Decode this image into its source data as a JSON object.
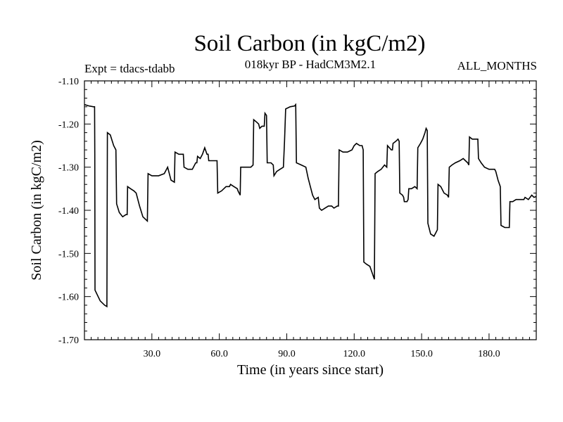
{
  "chart_data": {
    "type": "line",
    "title": "Soil Carbon (in kgC/m2)",
    "subtitle": "018kyr BP - HadCM3M2.1",
    "experiment": "Expt = tdacs-tdabb",
    "period": "ALL_MONTHS",
    "xlabel": "Time (in years since start)",
    "ylabel": "Soil Carbon (in kgC/m2)",
    "xlim": [
      0,
      201
    ],
    "ylim": [
      -1.7,
      -1.1
    ],
    "xticks": [
      30.0,
      60.0,
      90.0,
      120.0,
      150.0,
      180.0
    ],
    "xtick_labels": [
      "30.0",
      "60.0",
      "90.0",
      "120.0",
      "150.0",
      "180.0"
    ],
    "yticks": [
      -1.1,
      -1.2,
      -1.3,
      -1.4,
      -1.5,
      -1.6,
      -1.7
    ],
    "ytick_labels": [
      "-1.10",
      "-1.20",
      "-1.30",
      "-1.40",
      "-1.50",
      "-1.60",
      "-1.70"
    ],
    "series": [
      {
        "name": "Soil Carbon",
        "points": [
          [
            0,
            -1.155
          ],
          [
            2,
            -1.158
          ],
          [
            4,
            -1.16
          ],
          [
            4.5,
            -1.16
          ],
          [
            4.6,
            -1.27
          ],
          [
            4.7,
            -1.585
          ],
          [
            7,
            -1.61
          ],
          [
            9,
            -1.62
          ],
          [
            10,
            -1.623
          ],
          [
            10.2,
            -1.22
          ],
          [
            11.5,
            -1.225
          ],
          [
            13,
            -1.25
          ],
          [
            14,
            -1.26
          ],
          [
            14.3,
            -1.385
          ],
          [
            15.5,
            -1.405
          ],
          [
            17,
            -1.415
          ],
          [
            18.5,
            -1.41
          ],
          [
            19,
            -1.41
          ],
          [
            19.2,
            -1.345
          ],
          [
            20.5,
            -1.35
          ],
          [
            22,
            -1.355
          ],
          [
            23,
            -1.36
          ],
          [
            24.5,
            -1.39
          ],
          [
            26,
            -1.415
          ],
          [
            28,
            -1.425
          ],
          [
            28.3,
            -1.315
          ],
          [
            30,
            -1.32
          ],
          [
            33,
            -1.32
          ],
          [
            35.5,
            -1.315
          ],
          [
            36.5,
            -1.305
          ],
          [
            37,
            -1.3
          ],
          [
            37.5,
            -1.31
          ],
          [
            38.5,
            -1.33
          ],
          [
            40,
            -1.335
          ],
          [
            40.3,
            -1.265
          ],
          [
            42,
            -1.27
          ],
          [
            44,
            -1.27
          ],
          [
            44.3,
            -1.3
          ],
          [
            46,
            -1.305
          ],
          [
            48,
            -1.305
          ],
          [
            49.5,
            -1.29
          ],
          [
            50,
            -1.29
          ],
          [
            50.3,
            -1.275
          ],
          [
            51.5,
            -1.28
          ],
          [
            52.5,
            -1.27
          ],
          [
            53.5,
            -1.255
          ],
          [
            54.5,
            -1.27
          ],
          [
            55,
            -1.27
          ],
          [
            55.3,
            -1.285
          ],
          [
            57,
            -1.285
          ],
          [
            59,
            -1.285
          ],
          [
            59.3,
            -1.36
          ],
          [
            61,
            -1.355
          ],
          [
            63,
            -1.345
          ],
          [
            64.5,
            -1.345
          ],
          [
            65,
            -1.34
          ],
          [
            66.5,
            -1.345
          ],
          [
            68,
            -1.35
          ],
          [
            68.3,
            -1.355
          ],
          [
            69.3,
            -1.365
          ],
          [
            69.5,
            -1.3
          ],
          [
            71.5,
            -1.3
          ],
          [
            74,
            -1.3
          ],
          [
            75,
            -1.295
          ],
          [
            75.3,
            -1.19
          ],
          [
            76.5,
            -1.195
          ],
          [
            77.5,
            -1.2
          ],
          [
            78,
            -1.21
          ],
          [
            79,
            -1.205
          ],
          [
            80,
            -1.205
          ],
          [
            80.3,
            -1.175
          ],
          [
            81,
            -1.18
          ],
          [
            81.3,
            -1.29
          ],
          [
            83,
            -1.29
          ],
          [
            84,
            -1.295
          ],
          [
            84.3,
            -1.32
          ],
          [
            85.5,
            -1.31
          ],
          [
            87,
            -1.305
          ],
          [
            88.5,
            -1.3
          ],
          [
            89,
            -1.24
          ],
          [
            89.5,
            -1.165
          ],
          [
            91.5,
            -1.16
          ],
          [
            93.5,
            -1.158
          ],
          [
            94,
            -1.155
          ],
          [
            94.3,
            -1.29
          ],
          [
            96.5,
            -1.295
          ],
          [
            98.5,
            -1.3
          ],
          [
            99.5,
            -1.325
          ],
          [
            100.5,
            -1.345
          ],
          [
            101.5,
            -1.365
          ],
          [
            102.5,
            -1.375
          ],
          [
            104,
            -1.37
          ],
          [
            104.5,
            -1.395
          ],
          [
            105.5,
            -1.4
          ],
          [
            107,
            -1.395
          ],
          [
            108.5,
            -1.39
          ],
          [
            110,
            -1.39
          ],
          [
            111,
            -1.395
          ],
          [
            112.5,
            -1.39
          ],
          [
            113,
            -1.39
          ],
          [
            113.3,
            -1.26
          ],
          [
            115,
            -1.265
          ],
          [
            117,
            -1.265
          ],
          [
            119,
            -1.26
          ],
          [
            120,
            -1.25
          ],
          [
            121,
            -1.245
          ],
          [
            122.5,
            -1.25
          ],
          [
            123.5,
            -1.25
          ],
          [
            124,
            -1.26
          ],
          [
            124.3,
            -1.52
          ],
          [
            125.5,
            -1.525
          ],
          [
            127,
            -1.53
          ],
          [
            128,
            -1.545
          ],
          [
            129,
            -1.56
          ],
          [
            129.3,
            -1.315
          ],
          [
            130.5,
            -1.31
          ],
          [
            132,
            -1.305
          ],
          [
            133.5,
            -1.295
          ],
          [
            134.5,
            -1.3
          ],
          [
            134.8,
            -1.25
          ],
          [
            136.5,
            -1.26
          ],
          [
            137,
            -1.26
          ],
          [
            137.3,
            -1.245
          ],
          [
            138.5,
            -1.24
          ],
          [
            139.5,
            -1.235
          ],
          [
            140,
            -1.24
          ],
          [
            140.3,
            -1.36
          ],
          [
            141.5,
            -1.365
          ],
          [
            142,
            -1.37
          ],
          [
            142.3,
            -1.38
          ],
          [
            143.5,
            -1.38
          ],
          [
            144,
            -1.375
          ],
          [
            144.3,
            -1.35
          ],
          [
            145.5,
            -1.35
          ],
          [
            147,
            -1.345
          ],
          [
            148,
            -1.35
          ],
          [
            148.3,
            -1.255
          ],
          [
            149.5,
            -1.245
          ],
          [
            150.5,
            -1.235
          ],
          [
            151.5,
            -1.22
          ],
          [
            152,
            -1.21
          ],
          [
            152.5,
            -1.215
          ],
          [
            152.8,
            -1.43
          ],
          [
            154,
            -1.455
          ],
          [
            155.5,
            -1.46
          ],
          [
            156.5,
            -1.45
          ],
          [
            157,
            -1.445
          ],
          [
            157.3,
            -1.34
          ],
          [
            158.5,
            -1.345
          ],
          [
            160,
            -1.36
          ],
          [
            161.5,
            -1.365
          ],
          [
            162,
            -1.37
          ],
          [
            162.3,
            -1.3
          ],
          [
            163.5,
            -1.295
          ],
          [
            165,
            -1.29
          ],
          [
            167,
            -1.285
          ],
          [
            168.5,
            -1.28
          ],
          [
            169.5,
            -1.285
          ],
          [
            170.5,
            -1.29
          ],
          [
            171,
            -1.295
          ],
          [
            171.3,
            -1.23
          ],
          [
            172.5,
            -1.235
          ],
          [
            174,
            -1.235
          ],
          [
            175,
            -1.235
          ],
          [
            175.3,
            -1.28
          ],
          [
            176.5,
            -1.29
          ],
          [
            178,
            -1.3
          ],
          [
            180,
            -1.305
          ],
          [
            182.5,
            -1.305
          ],
          [
            183,
            -1.31
          ],
          [
            184,
            -1.33
          ],
          [
            185,
            -1.345
          ],
          [
            185.3,
            -1.435
          ],
          [
            187,
            -1.44
          ],
          [
            188,
            -1.44
          ],
          [
            189,
            -1.44
          ],
          [
            189.3,
            -1.38
          ],
          [
            190.5,
            -1.38
          ],
          [
            192,
            -1.375
          ],
          [
            193,
            -1.375
          ],
          [
            194,
            -1.375
          ],
          [
            195.5,
            -1.375
          ],
          [
            196,
            -1.37
          ],
          [
            197.5,
            -1.375
          ],
          [
            199,
            -1.365
          ],
          [
            200,
            -1.37
          ],
          [
            201,
            -1.368
          ]
        ]
      }
    ]
  },
  "colors": {
    "line": "#000000",
    "axis": "#000000",
    "background": "#ffffff"
  }
}
